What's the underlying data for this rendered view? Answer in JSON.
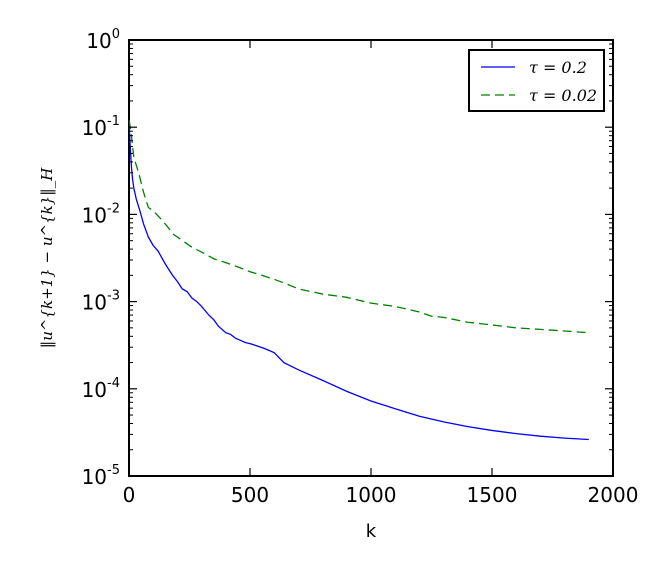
{
  "chart_data": {
    "type": "line",
    "title": "",
    "xlabel": "k",
    "ylabel": "‖u^{k+1} − u^{k}‖_H",
    "xlim": [
      0,
      2000
    ],
    "ylim": [
      1e-05,
      1
    ],
    "yscale": "log",
    "grid": false,
    "legend_position": "top-right",
    "x_ticks": [
      {
        "value": 0,
        "label": "0"
      },
      {
        "value": 500,
        "label": "500"
      },
      {
        "value": 1000,
        "label": "1000"
      },
      {
        "value": 1500,
        "label": "1500"
      },
      {
        "value": 2000,
        "label": "2000"
      }
    ],
    "y_ticks": [
      {
        "value": 1,
        "base": "10",
        "exp": "0"
      },
      {
        "value": 0.1,
        "base": "10",
        "exp": "-1"
      },
      {
        "value": 0.01,
        "base": "10",
        "exp": "-2"
      },
      {
        "value": 0.001,
        "base": "10",
        "exp": "-3"
      },
      {
        "value": 0.0001,
        "base": "10",
        "exp": "-4"
      },
      {
        "value": 1e-05,
        "base": "10",
        "exp": "-5"
      }
    ],
    "series": [
      {
        "name": "τ = 0.2",
        "color": "#0000ff",
        "dash": "solid",
        "points": [
          [
            1,
            0.1
          ],
          [
            5,
            0.06
          ],
          [
            10,
            0.035
          ],
          [
            15,
            0.025
          ],
          [
            20,
            0.02
          ],
          [
            30,
            0.015
          ],
          [
            45,
            0.011
          ],
          [
            60,
            0.0078
          ],
          [
            80,
            0.0055
          ],
          [
            100,
            0.0044
          ],
          [
            120,
            0.0038
          ],
          [
            150,
            0.0027
          ],
          [
            180,
            0.002
          ],
          [
            200,
            0.0017
          ],
          [
            220,
            0.0014
          ],
          [
            240,
            0.0013
          ],
          [
            260,
            0.0011
          ],
          [
            280,
            0.001
          ],
          [
            300,
            0.00088
          ],
          [
            330,
            0.0007
          ],
          [
            350,
            0.00062
          ],
          [
            370,
            0.00052
          ],
          [
            400,
            0.00044
          ],
          [
            420,
            0.00042
          ],
          [
            440,
            0.00038
          ],
          [
            460,
            0.00036
          ],
          [
            480,
            0.00034
          ],
          [
            500,
            0.00033
          ],
          [
            530,
            0.00031
          ],
          [
            560,
            0.00029
          ],
          [
            600,
            0.00026
          ],
          [
            640,
            0.0002
          ],
          [
            700,
            0.000165
          ],
          [
            800,
            0.000125
          ],
          [
            900,
            9.35e-05
          ],
          [
            1000,
            7.25e-05
          ],
          [
            1100,
            5.9e-05
          ],
          [
            1200,
            4.85e-05
          ],
          [
            1300,
            4.18e-05
          ],
          [
            1400,
            3.68e-05
          ],
          [
            1500,
            3.33e-05
          ],
          [
            1600,
            3.06e-05
          ],
          [
            1700,
            2.86e-05
          ],
          [
            1800,
            2.72e-05
          ],
          [
            1900,
            2.62e-05
          ]
        ]
      },
      {
        "name": "τ = 0.02",
        "color": "#008000",
        "dash": "dashed",
        "points": [
          [
            1,
            0.12
          ],
          [
            10,
            0.08
          ],
          [
            20,
            0.045
          ],
          [
            40,
            0.03
          ],
          [
            60,
            0.018
          ],
          [
            80,
            0.012
          ],
          [
            100,
            0.011
          ],
          [
            130,
            0.009
          ],
          [
            160,
            0.0072
          ],
          [
            180,
            0.006
          ],
          [
            200,
            0.0055
          ],
          [
            230,
            0.0048
          ],
          [
            260,
            0.0042
          ],
          [
            300,
            0.0037
          ],
          [
            350,
            0.0031
          ],
          [
            400,
            0.0028
          ],
          [
            450,
            0.0025
          ],
          [
            500,
            0.0022
          ],
          [
            550,
            0.002
          ],
          [
            600,
            0.0018
          ],
          [
            650,
            0.0016
          ],
          [
            700,
            0.0014
          ],
          [
            800,
            0.00122
          ],
          [
            900,
            0.00112
          ],
          [
            1000,
            0.00096
          ],
          [
            1100,
            0.00088
          ],
          [
            1200,
            0.00076
          ],
          [
            1250,
            0.00068
          ],
          [
            1300,
            0.00066
          ],
          [
            1400,
            0.00058
          ],
          [
            1500,
            0.00054
          ],
          [
            1600,
            0.0005
          ],
          [
            1700,
            0.00048
          ],
          [
            1800,
            0.00046
          ],
          [
            1900,
            0.00044
          ]
        ]
      }
    ]
  }
}
